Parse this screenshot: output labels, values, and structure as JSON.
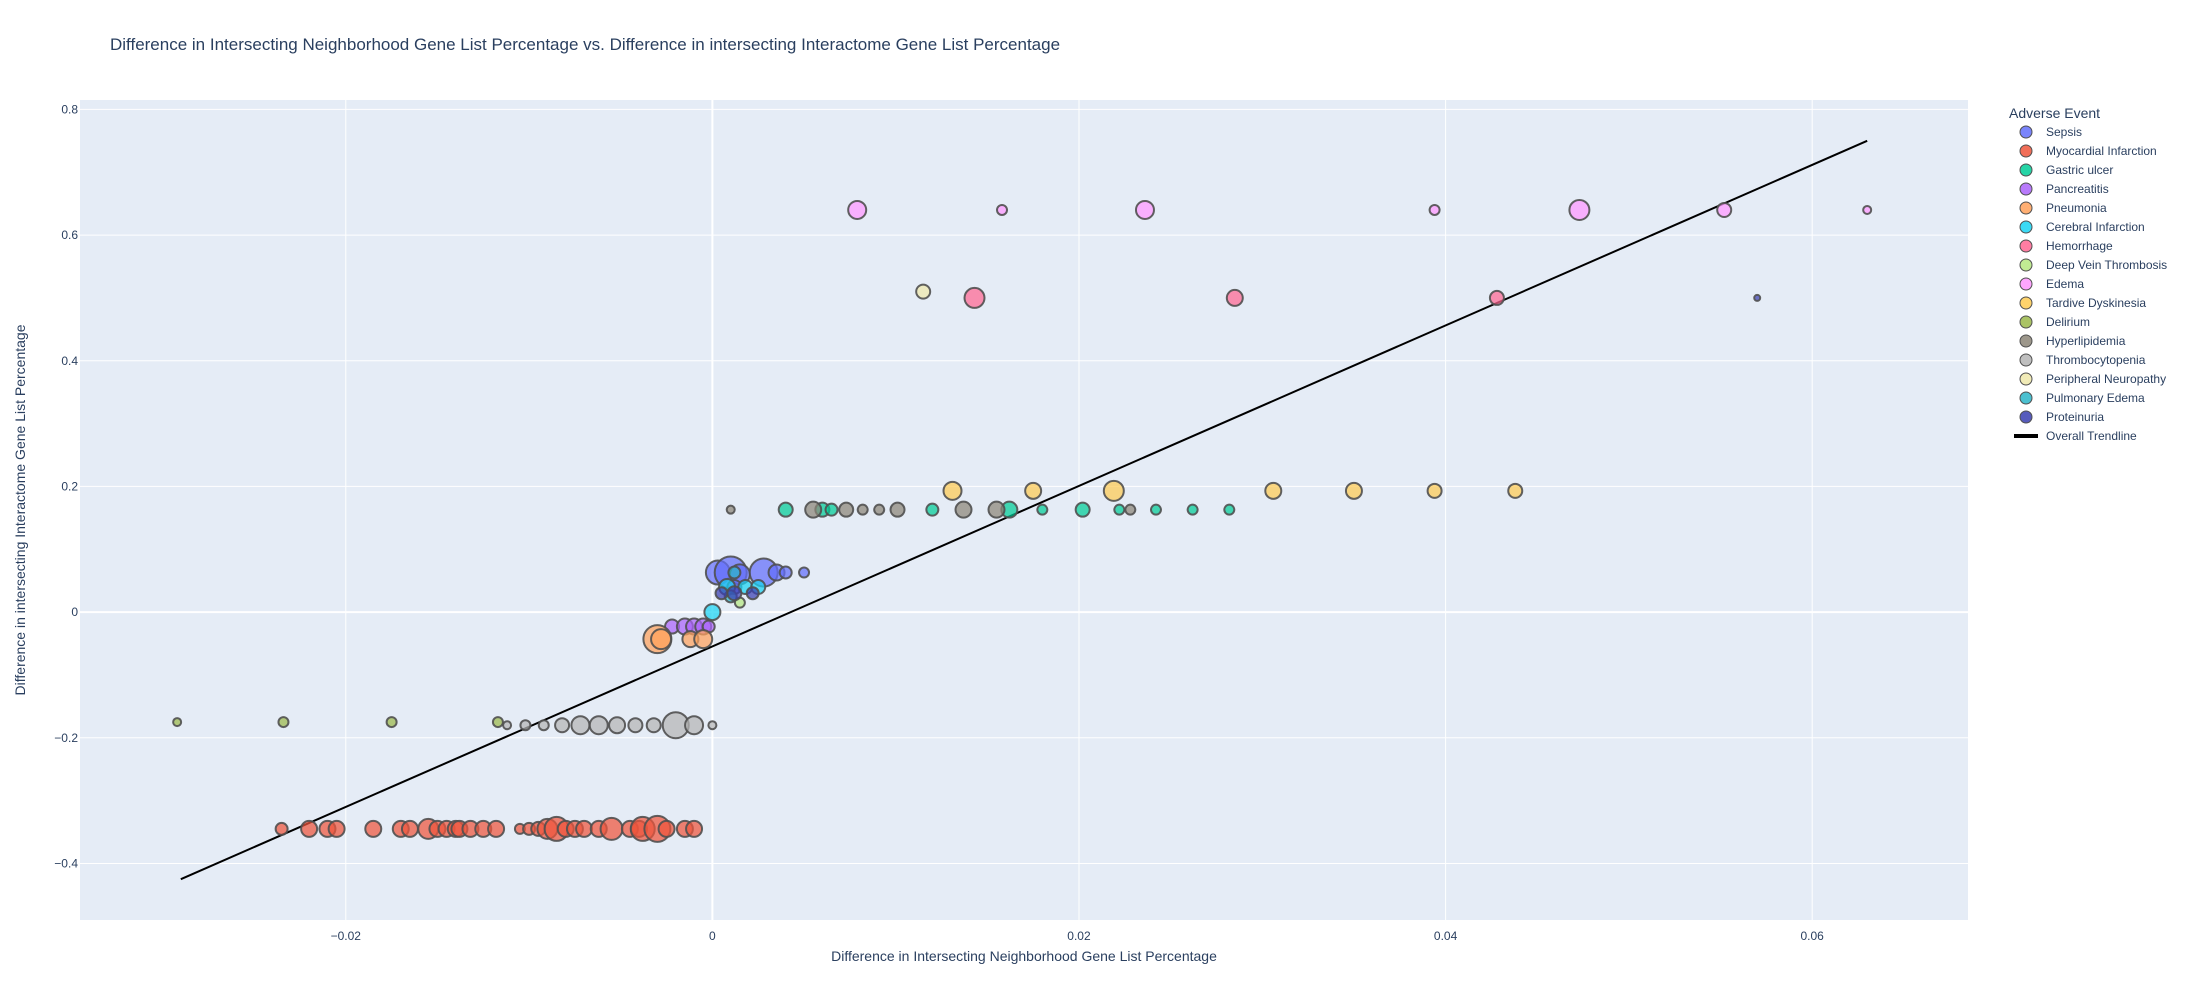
{
  "chart_data": {
    "type": "scatter",
    "title": "Difference in Intersecting Neighborhood Gene List Percentage vs. Difference in intersecting Interactome Gene List Percentage",
    "xlabel": "Difference in Intersecting Neighborhood Gene List Percentage",
    "ylabel": "Difference in intersecting Interactome Gene List Percentage",
    "xlim": [
      -0.0345,
      0.0685
    ],
    "ylim": [
      -0.49,
      0.815
    ],
    "x_ticks": [
      -0.02,
      0,
      0.02,
      0.04,
      0.06
    ],
    "x_tick_labels": [
      "−0.02",
      "0",
      "0.02",
      "0.04",
      "0.06"
    ],
    "y_ticks": [
      -0.4,
      -0.2,
      0,
      0.2,
      0.4,
      0.6,
      0.8
    ],
    "y_tick_labels": [
      "−0.4",
      "−0.2",
      "0",
      "0.2",
      "0.4",
      "0.6",
      "0.8"
    ],
    "grid": true,
    "legend_title": "Adverse Event",
    "legend_position": "right",
    "trendline": {
      "name": "Overall Trendline",
      "color": "#000000",
      "x": [
        -0.029,
        0.063
      ],
      "y": [
        -0.425,
        0.75
      ]
    },
    "series": [
      {
        "name": "Sepsis",
        "color": "#636efa",
        "points": [
          [
            0.0003,
            0.063,
            12
          ],
          [
            0.001,
            0.063,
            16
          ],
          [
            0.0015,
            0.06,
            10
          ],
          [
            0.0028,
            0.063,
            14
          ],
          [
            0.0035,
            0.063,
            8
          ],
          [
            0.004,
            0.063,
            6
          ],
          [
            0.005,
            0.063,
            5
          ],
          [
            0.0012,
            0.04,
            7
          ]
        ]
      },
      {
        "name": "Myocardial Infarction",
        "color": "#ef553b",
        "points": [
          [
            -0.0235,
            -0.345,
            6
          ],
          [
            -0.022,
            -0.345,
            8
          ],
          [
            -0.021,
            -0.345,
            8
          ],
          [
            -0.0205,
            -0.345,
            8
          ],
          [
            -0.0185,
            -0.345,
            8
          ],
          [
            -0.017,
            -0.345,
            8
          ],
          [
            -0.0165,
            -0.345,
            8
          ],
          [
            -0.0155,
            -0.345,
            10
          ],
          [
            -0.015,
            -0.345,
            8
          ],
          [
            -0.0145,
            -0.345,
            8
          ],
          [
            -0.014,
            -0.345,
            8
          ],
          [
            -0.0138,
            -0.345,
            8
          ],
          [
            -0.0132,
            -0.345,
            8
          ],
          [
            -0.0125,
            -0.345,
            8
          ],
          [
            -0.0118,
            -0.345,
            8
          ],
          [
            -0.0105,
            -0.345,
            5
          ],
          [
            -0.01,
            -0.345,
            6
          ],
          [
            -0.0095,
            -0.345,
            7
          ],
          [
            -0.009,
            -0.345,
            10
          ],
          [
            -0.0085,
            -0.345,
            12
          ],
          [
            -0.008,
            -0.345,
            8
          ],
          [
            -0.0075,
            -0.345,
            8
          ],
          [
            -0.007,
            -0.345,
            8
          ],
          [
            -0.0062,
            -0.345,
            8
          ],
          [
            -0.0055,
            -0.345,
            11
          ],
          [
            -0.0045,
            -0.345,
            8
          ],
          [
            -0.004,
            -0.345,
            8
          ],
          [
            -0.0038,
            -0.345,
            12
          ],
          [
            -0.003,
            -0.345,
            13
          ],
          [
            -0.0025,
            -0.345,
            8
          ],
          [
            -0.0015,
            -0.345,
            8
          ],
          [
            -0.001,
            -0.345,
            8
          ]
        ]
      },
      {
        "name": "Gastric ulcer",
        "color": "#00cc96",
        "points": [
          [
            0.004,
            0.163,
            7
          ],
          [
            0.006,
            0.163,
            7
          ],
          [
            0.0065,
            0.163,
            6
          ],
          [
            0.012,
            0.163,
            6
          ],
          [
            0.0162,
            0.163,
            8
          ],
          [
            0.018,
            0.163,
            5
          ],
          [
            0.0202,
            0.163,
            7
          ],
          [
            0.0222,
            0.163,
            5
          ],
          [
            0.0242,
            0.163,
            5
          ],
          [
            0.0262,
            0.163,
            5
          ],
          [
            0.0282,
            0.163,
            5
          ]
        ]
      },
      {
        "name": "Pancreatitis",
        "color": "#ab63fa",
        "points": [
          [
            -0.0022,
            -0.023,
            7
          ],
          [
            -0.0015,
            -0.023,
            8
          ],
          [
            -0.001,
            -0.023,
            8
          ],
          [
            -0.0005,
            -0.023,
            8
          ],
          [
            -0.0002,
            -0.023,
            6
          ]
        ]
      },
      {
        "name": "Pneumonia",
        "color": "#ffa15a",
        "points": [
          [
            -0.003,
            -0.043,
            14
          ],
          [
            -0.0028,
            -0.043,
            10
          ],
          [
            -0.0012,
            -0.043,
            8
          ],
          [
            -0.0005,
            -0.043,
            9
          ]
        ]
      },
      {
        "name": "Cerebral Infarction",
        "color": "#19d3f3",
        "points": [
          [
            0.0,
            0.0,
            8
          ],
          [
            0.0008,
            0.04,
            8
          ],
          [
            0.0018,
            0.04,
            7
          ],
          [
            0.0025,
            0.04,
            7
          ]
        ]
      },
      {
        "name": "Hemorrhage",
        "color": "#ff6692",
        "points": [
          [
            0.0143,
            0.5,
            10
          ],
          [
            0.0285,
            0.5,
            8
          ],
          [
            0.0428,
            0.5,
            7
          ]
        ]
      },
      {
        "name": "Deep Vein Thrombosis",
        "color": "#b6e880",
        "points": [
          [
            0.0015,
            0.015,
            5
          ]
        ]
      },
      {
        "name": "Edema",
        "color": "#ff97ff",
        "points": [
          [
            0.0079,
            0.64,
            9
          ],
          [
            0.0158,
            0.64,
            5
          ],
          [
            0.0236,
            0.64,
            9
          ],
          [
            0.0394,
            0.64,
            5
          ],
          [
            0.0473,
            0.64,
            10
          ],
          [
            0.0552,
            0.64,
            7
          ],
          [
            0.063,
            0.64,
            4
          ]
        ]
      },
      {
        "name": "Tardive Dyskinesia",
        "color": "#fecb52",
        "points": [
          [
            0.0131,
            0.193,
            9
          ],
          [
            0.0175,
            0.193,
            8
          ],
          [
            0.0219,
            0.193,
            10
          ],
          [
            0.0306,
            0.193,
            8
          ],
          [
            0.035,
            0.193,
            8
          ],
          [
            0.0394,
            0.193,
            7
          ],
          [
            0.0438,
            0.193,
            7
          ]
        ]
      },
      {
        "name": "Delirium",
        "color": "#9bb84a",
        "points": [
          [
            -0.0292,
            -0.175,
            4
          ],
          [
            -0.0234,
            -0.175,
            5
          ],
          [
            -0.0175,
            -0.175,
            5
          ],
          [
            -0.0117,
            -0.175,
            5
          ]
        ]
      },
      {
        "name": "Hyperlipidemia",
        "color": "#8c8577",
        "points": [
          [
            0.001,
            0.163,
            4
          ],
          [
            0.0055,
            0.163,
            8
          ],
          [
            0.0073,
            0.163,
            7
          ],
          [
            0.0082,
            0.163,
            5
          ],
          [
            0.0091,
            0.163,
            5
          ],
          [
            0.0101,
            0.163,
            7
          ],
          [
            0.0137,
            0.163,
            8
          ],
          [
            0.0155,
            0.163,
            8
          ],
          [
            0.0228,
            0.163,
            5
          ]
        ]
      },
      {
        "name": "Thrombocytopenia",
        "color": "#b4b4b4",
        "points": [
          [
            -0.0112,
            -0.18,
            4
          ],
          [
            -0.0102,
            -0.18,
            5
          ],
          [
            -0.0092,
            -0.18,
            5
          ],
          [
            -0.0082,
            -0.18,
            7
          ],
          [
            -0.0072,
            -0.18,
            9
          ],
          [
            -0.0062,
            -0.18,
            9
          ],
          [
            -0.0052,
            -0.18,
            8
          ],
          [
            -0.0042,
            -0.18,
            7
          ],
          [
            -0.0032,
            -0.18,
            7
          ],
          [
            -0.002,
            -0.18,
            13
          ],
          [
            -0.001,
            -0.18,
            9
          ],
          [
            0.0,
            -0.18,
            4
          ]
        ]
      },
      {
        "name": "Peripheral Neuropathy",
        "color": "#eee8aa",
        "points": [
          [
            0.0115,
            0.51,
            7
          ]
        ]
      },
      {
        "name": "Pulmonary Edema",
        "color": "#2cb5c8",
        "points": [
          [
            0.0012,
            0.063,
            6
          ],
          [
            0.001,
            0.025,
            6
          ]
        ]
      },
      {
        "name": "Proteinuria",
        "color": "#3a3fb0",
        "points": [
          [
            0.0005,
            0.03,
            6
          ],
          [
            0.0012,
            0.03,
            7
          ],
          [
            0.0022,
            0.03,
            6
          ],
          [
            0.057,
            0.5,
            3
          ]
        ]
      }
    ]
  }
}
